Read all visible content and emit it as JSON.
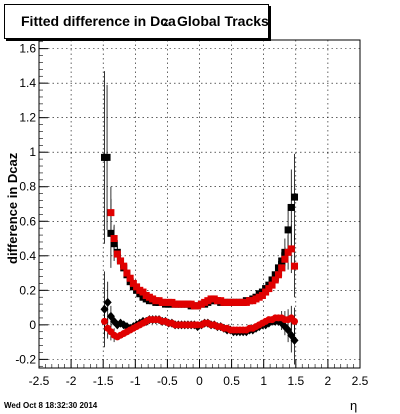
{
  "title": {
    "prefix": "Fitted difference in Dca",
    "subscript": "Z",
    "suffix": "Global Tracks"
  },
  "ylabel": "difference in Dcaz",
  "xlabel": "η",
  "timestamp": "Wed Oct  8 18:32:30 2014",
  "colors": {
    "series_black": "#000000",
    "series_red": "#e00000",
    "grid": "#000000"
  },
  "chart_data": {
    "type": "scatter",
    "xlim": [
      -2.5,
      2.5
    ],
    "ylim": [
      -0.25,
      1.65
    ],
    "x_ticks": [
      "-2.5",
      "-2",
      "-1.5",
      "-1",
      "-0.5",
      "0",
      "0.5",
      "1",
      "1.5",
      "2",
      "2.5"
    ],
    "y_ticks": [
      "-0.2",
      "0",
      "0.2",
      "0.4",
      "0.6",
      "0.8",
      "1",
      "1.2",
      "1.4",
      "1.6"
    ],
    "grid": true,
    "series": [
      {
        "marker": "square",
        "color": "#000000",
        "points": [
          {
            "x": -1.48,
            "y": 0.97,
            "err": 0.5
          },
          {
            "x": -1.44,
            "y": 0.97,
            "err": 0.42
          },
          {
            "x": -1.38,
            "y": 0.53,
            "err": 0.2
          },
          {
            "x": -1.33,
            "y": 0.47,
            "err": 0.1
          },
          {
            "x": -1.28,
            "y": 0.42,
            "err": 0.07
          },
          {
            "x": -1.23,
            "y": 0.37,
            "err": 0.04
          },
          {
            "x": -1.18,
            "y": 0.33
          },
          {
            "x": -1.13,
            "y": 0.29
          },
          {
            "x": -1.08,
            "y": 0.25
          },
          {
            "x": -1.03,
            "y": 0.22
          },
          {
            "x": -0.98,
            "y": 0.2
          },
          {
            "x": -0.93,
            "y": 0.18
          },
          {
            "x": -0.88,
            "y": 0.16
          },
          {
            "x": -0.83,
            "y": 0.15
          },
          {
            "x": -0.78,
            "y": 0.14
          },
          {
            "x": -0.73,
            "y": 0.14
          },
          {
            "x": -0.68,
            "y": 0.13
          },
          {
            "x": -0.63,
            "y": 0.13
          },
          {
            "x": -0.58,
            "y": 0.13
          },
          {
            "x": -0.53,
            "y": 0.12
          },
          {
            "x": -0.48,
            "y": 0.12
          },
          {
            "x": -0.43,
            "y": 0.12
          },
          {
            "x": -0.38,
            "y": 0.12
          },
          {
            "x": -0.33,
            "y": 0.12
          },
          {
            "x": -0.28,
            "y": 0.12
          },
          {
            "x": -0.23,
            "y": 0.12
          },
          {
            "x": -0.18,
            "y": 0.12
          },
          {
            "x": -0.13,
            "y": 0.11
          },
          {
            "x": -0.08,
            "y": 0.11
          },
          {
            "x": -0.03,
            "y": 0.11
          },
          {
            "x": 0.03,
            "y": 0.12
          },
          {
            "x": 0.08,
            "y": 0.12
          },
          {
            "x": 0.13,
            "y": 0.13
          },
          {
            "x": 0.18,
            "y": 0.14
          },
          {
            "x": 0.23,
            "y": 0.14
          },
          {
            "x": 0.28,
            "y": 0.14
          },
          {
            "x": 0.33,
            "y": 0.13
          },
          {
            "x": 0.38,
            "y": 0.13
          },
          {
            "x": 0.43,
            "y": 0.13
          },
          {
            "x": 0.48,
            "y": 0.13
          },
          {
            "x": 0.53,
            "y": 0.13
          },
          {
            "x": 0.58,
            "y": 0.13
          },
          {
            "x": 0.63,
            "y": 0.13
          },
          {
            "x": 0.68,
            "y": 0.13
          },
          {
            "x": 0.73,
            "y": 0.14
          },
          {
            "x": 0.78,
            "y": 0.14
          },
          {
            "x": 0.83,
            "y": 0.15
          },
          {
            "x": 0.88,
            "y": 0.16
          },
          {
            "x": 0.93,
            "y": 0.18
          },
          {
            "x": 0.98,
            "y": 0.19
          },
          {
            "x": 1.03,
            "y": 0.21
          },
          {
            "x": 1.08,
            "y": 0.23
          },
          {
            "x": 1.13,
            "y": 0.26
          },
          {
            "x": 1.18,
            "y": 0.29
          },
          {
            "x": 1.23,
            "y": 0.33,
            "err": 0.04
          },
          {
            "x": 1.28,
            "y": 0.37,
            "err": 0.05
          },
          {
            "x": 1.33,
            "y": 0.42,
            "err": 0.08
          },
          {
            "x": 1.38,
            "y": 0.55,
            "err": 0.15
          },
          {
            "x": 1.43,
            "y": 0.68,
            "err": 0.22
          },
          {
            "x": 1.48,
            "y": 0.74,
            "err": 0.25
          }
        ]
      },
      {
        "marker": "square",
        "color": "#e00000",
        "points": [
          {
            "x": -1.38,
            "y": 0.65,
            "err": 0.15
          },
          {
            "x": -1.33,
            "y": 0.5,
            "err": 0.08
          },
          {
            "x": -1.28,
            "y": 0.41,
            "err": 0.05
          },
          {
            "x": -1.23,
            "y": 0.37
          },
          {
            "x": -1.18,
            "y": 0.34
          },
          {
            "x": -1.13,
            "y": 0.3
          },
          {
            "x": -1.08,
            "y": 0.27
          },
          {
            "x": -1.03,
            "y": 0.24
          },
          {
            "x": -0.98,
            "y": 0.22
          },
          {
            "x": -0.93,
            "y": 0.2
          },
          {
            "x": -0.88,
            "y": 0.19
          },
          {
            "x": -0.83,
            "y": 0.17
          },
          {
            "x": -0.78,
            "y": 0.16
          },
          {
            "x": -0.73,
            "y": 0.15
          },
          {
            "x": -0.68,
            "y": 0.14
          },
          {
            "x": -0.63,
            "y": 0.14
          },
          {
            "x": -0.58,
            "y": 0.13
          },
          {
            "x": -0.53,
            "y": 0.13
          },
          {
            "x": -0.48,
            "y": 0.13
          },
          {
            "x": -0.43,
            "y": 0.13
          },
          {
            "x": -0.38,
            "y": 0.12
          },
          {
            "x": -0.33,
            "y": 0.12
          },
          {
            "x": -0.28,
            "y": 0.12
          },
          {
            "x": -0.23,
            "y": 0.12
          },
          {
            "x": -0.18,
            "y": 0.12
          },
          {
            "x": -0.13,
            "y": 0.12
          },
          {
            "x": -0.08,
            "y": 0.11
          },
          {
            "x": -0.03,
            "y": 0.11
          },
          {
            "x": 0.03,
            "y": 0.12
          },
          {
            "x": 0.08,
            "y": 0.13
          },
          {
            "x": 0.13,
            "y": 0.14
          },
          {
            "x": 0.18,
            "y": 0.15
          },
          {
            "x": 0.23,
            "y": 0.15
          },
          {
            "x": 0.28,
            "y": 0.14
          },
          {
            "x": 0.33,
            "y": 0.14
          },
          {
            "x": 0.38,
            "y": 0.13
          },
          {
            "x": 0.43,
            "y": 0.13
          },
          {
            "x": 0.48,
            "y": 0.13
          },
          {
            "x": 0.53,
            "y": 0.13
          },
          {
            "x": 0.58,
            "y": 0.13
          },
          {
            "x": 0.63,
            "y": 0.13
          },
          {
            "x": 0.68,
            "y": 0.13
          },
          {
            "x": 0.73,
            "y": 0.13
          },
          {
            "x": 0.78,
            "y": 0.14
          },
          {
            "x": 0.83,
            "y": 0.14
          },
          {
            "x": 0.88,
            "y": 0.15
          },
          {
            "x": 0.93,
            "y": 0.16
          },
          {
            "x": 0.98,
            "y": 0.17
          },
          {
            "x": 1.03,
            "y": 0.19
          },
          {
            "x": 1.08,
            "y": 0.21
          },
          {
            "x": 1.13,
            "y": 0.23
          },
          {
            "x": 1.18,
            "y": 0.26
          },
          {
            "x": 1.23,
            "y": 0.29,
            "err": 0.04
          },
          {
            "x": 1.28,
            "y": 0.33,
            "err": 0.05
          },
          {
            "x": 1.33,
            "y": 0.38,
            "err": 0.07
          },
          {
            "x": 1.38,
            "y": 0.42,
            "err": 0.1
          },
          {
            "x": 1.43,
            "y": 0.44,
            "err": 0.14
          },
          {
            "x": 1.48,
            "y": 0.34,
            "err": 0.18
          }
        ]
      },
      {
        "marker": "diamond",
        "color": "#000000",
        "points": [
          {
            "x": -1.48,
            "y": 0.09,
            "err": 0.22
          },
          {
            "x": -1.43,
            "y": 0.13,
            "err": 0.12
          },
          {
            "x": -1.38,
            "y": 0.05,
            "err": 0.06
          },
          {
            "x": -1.33,
            "y": 0.02
          },
          {
            "x": -1.28,
            "y": 0.0
          },
          {
            "x": -1.23,
            "y": 0.01
          },
          {
            "x": -1.18,
            "y": 0.0
          },
          {
            "x": -1.13,
            "y": -0.01
          },
          {
            "x": -1.08,
            "y": -0.02
          },
          {
            "x": -1.03,
            "y": -0.01
          },
          {
            "x": -0.98,
            "y": 0.0
          },
          {
            "x": -0.93,
            "y": 0.01
          },
          {
            "x": -0.88,
            "y": 0.02
          },
          {
            "x": -0.83,
            "y": 0.02
          },
          {
            "x": -0.78,
            "y": 0.03
          },
          {
            "x": -0.73,
            "y": 0.03
          },
          {
            "x": -0.68,
            "y": 0.03
          },
          {
            "x": -0.63,
            "y": 0.03
          },
          {
            "x": -0.58,
            "y": 0.02
          },
          {
            "x": -0.53,
            "y": 0.02
          },
          {
            "x": -0.48,
            "y": 0.01
          },
          {
            "x": -0.43,
            "y": 0.01
          },
          {
            "x": -0.38,
            "y": 0.0
          },
          {
            "x": -0.33,
            "y": 0.0
          },
          {
            "x": -0.28,
            "y": 0.0
          },
          {
            "x": -0.23,
            "y": 0.0
          },
          {
            "x": -0.18,
            "y": 0.0
          },
          {
            "x": -0.13,
            "y": 0.0
          },
          {
            "x": -0.08,
            "y": 0.0
          },
          {
            "x": -0.03,
            "y": -0.01
          },
          {
            "x": 0.03,
            "y": 0.0
          },
          {
            "x": 0.08,
            "y": 0.01
          },
          {
            "x": 0.13,
            "y": 0.01
          },
          {
            "x": 0.18,
            "y": 0.0
          },
          {
            "x": 0.23,
            "y": 0.0
          },
          {
            "x": 0.28,
            "y": -0.01
          },
          {
            "x": 0.33,
            "y": -0.01
          },
          {
            "x": 0.38,
            "y": -0.02
          },
          {
            "x": 0.43,
            "y": -0.03
          },
          {
            "x": 0.48,
            "y": -0.03
          },
          {
            "x": 0.53,
            "y": -0.04
          },
          {
            "x": 0.58,
            "y": -0.04
          },
          {
            "x": 0.63,
            "y": -0.04
          },
          {
            "x": 0.68,
            "y": -0.04
          },
          {
            "x": 0.73,
            "y": -0.04
          },
          {
            "x": 0.78,
            "y": -0.03
          },
          {
            "x": 0.83,
            "y": -0.03
          },
          {
            "x": 0.88,
            "y": -0.02
          },
          {
            "x": 0.93,
            "y": -0.01
          },
          {
            "x": 0.98,
            "y": 0.0
          },
          {
            "x": 1.03,
            "y": 0.0
          },
          {
            "x": 1.08,
            "y": 0.01
          },
          {
            "x": 1.13,
            "y": 0.02
          },
          {
            "x": 1.18,
            "y": 0.02
          },
          {
            "x": 1.23,
            "y": 0.02
          },
          {
            "x": 1.28,
            "y": 0.01,
            "err": 0.04
          },
          {
            "x": 1.33,
            "y": -0.01,
            "err": 0.05
          },
          {
            "x": 1.38,
            "y": -0.03,
            "err": 0.07
          },
          {
            "x": 1.43,
            "y": -0.06,
            "err": 0.1
          },
          {
            "x": 1.48,
            "y": -0.09,
            "err": 0.14
          }
        ]
      },
      {
        "marker": "circle",
        "color": "#e00000",
        "points": [
          {
            "x": -1.48,
            "y": 0.02,
            "err": 0.08
          },
          {
            "x": -1.43,
            "y": -0.02,
            "err": 0.06
          },
          {
            "x": -1.38,
            "y": -0.04,
            "err": 0.05
          },
          {
            "x": -1.33,
            "y": -0.06,
            "err": 0.04
          },
          {
            "x": -1.28,
            "y": -0.07
          },
          {
            "x": -1.23,
            "y": -0.06
          },
          {
            "x": -1.18,
            "y": -0.05
          },
          {
            "x": -1.13,
            "y": -0.04
          },
          {
            "x": -1.08,
            "y": -0.03
          },
          {
            "x": -1.03,
            "y": -0.02
          },
          {
            "x": -0.98,
            "y": -0.01
          },
          {
            "x": -0.93,
            "y": 0.0
          },
          {
            "x": -0.88,
            "y": 0.01
          },
          {
            "x": -0.83,
            "y": 0.02
          },
          {
            "x": -0.78,
            "y": 0.03
          },
          {
            "x": -0.73,
            "y": 0.03
          },
          {
            "x": -0.68,
            "y": 0.03
          },
          {
            "x": -0.63,
            "y": 0.03
          },
          {
            "x": -0.58,
            "y": 0.02
          },
          {
            "x": -0.53,
            "y": 0.02
          },
          {
            "x": -0.48,
            "y": 0.01
          },
          {
            "x": -0.43,
            "y": 0.01
          },
          {
            "x": -0.38,
            "y": 0.0
          },
          {
            "x": -0.33,
            "y": 0.0
          },
          {
            "x": -0.28,
            "y": 0.0
          },
          {
            "x": -0.23,
            "y": 0.0
          },
          {
            "x": -0.18,
            "y": 0.0
          },
          {
            "x": -0.13,
            "y": 0.0
          },
          {
            "x": -0.08,
            "y": 0.0
          },
          {
            "x": -0.03,
            "y": 0.0
          },
          {
            "x": 0.03,
            "y": 0.0
          },
          {
            "x": 0.08,
            "y": 0.01
          },
          {
            "x": 0.13,
            "y": 0.01
          },
          {
            "x": 0.18,
            "y": 0.0
          },
          {
            "x": 0.23,
            "y": 0.0
          },
          {
            "x": 0.28,
            "y": -0.01
          },
          {
            "x": 0.33,
            "y": -0.01
          },
          {
            "x": 0.38,
            "y": -0.02
          },
          {
            "x": 0.43,
            "y": -0.02
          },
          {
            "x": 0.48,
            "y": -0.03
          },
          {
            "x": 0.53,
            "y": -0.03
          },
          {
            "x": 0.58,
            "y": -0.03
          },
          {
            "x": 0.63,
            "y": -0.03
          },
          {
            "x": 0.68,
            "y": -0.03
          },
          {
            "x": 0.73,
            "y": -0.03
          },
          {
            "x": 0.78,
            "y": -0.02
          },
          {
            "x": 0.83,
            "y": -0.02
          },
          {
            "x": 0.88,
            "y": -0.01
          },
          {
            "x": 0.93,
            "y": 0.0
          },
          {
            "x": 0.98,
            "y": 0.01
          },
          {
            "x": 1.03,
            "y": 0.02
          },
          {
            "x": 1.08,
            "y": 0.03
          },
          {
            "x": 1.13,
            "y": 0.03
          },
          {
            "x": 1.18,
            "y": 0.04
          },
          {
            "x": 1.23,
            "y": 0.04
          },
          {
            "x": 1.28,
            "y": 0.04,
            "err": 0.04
          },
          {
            "x": 1.33,
            "y": 0.03,
            "err": 0.05
          },
          {
            "x": 1.38,
            "y": 0.03,
            "err": 0.06
          },
          {
            "x": 1.43,
            "y": 0.04,
            "err": 0.07
          },
          {
            "x": 1.48,
            "y": 0.02,
            "err": 0.08
          }
        ]
      }
    ]
  }
}
